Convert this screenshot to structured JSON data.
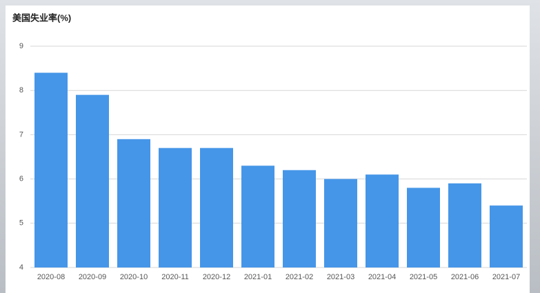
{
  "chart_data": {
    "type": "bar",
    "title": "美国失业率(%)",
    "categories": [
      "2020-08",
      "2020-09",
      "2020-10",
      "2020-11",
      "2020-12",
      "2021-01",
      "2021-02",
      "2021-03",
      "2021-04",
      "2021-05",
      "2021-06",
      "2021-07"
    ],
    "values": [
      8.4,
      7.9,
      6.9,
      6.7,
      6.7,
      6.3,
      6.2,
      6.0,
      6.1,
      5.8,
      5.9,
      5.4
    ],
    "color": "#4596e8",
    "ylim": [
      4,
      9
    ],
    "yticks": [
      4,
      5,
      6,
      7,
      8,
      9
    ],
    "grid": true
  }
}
